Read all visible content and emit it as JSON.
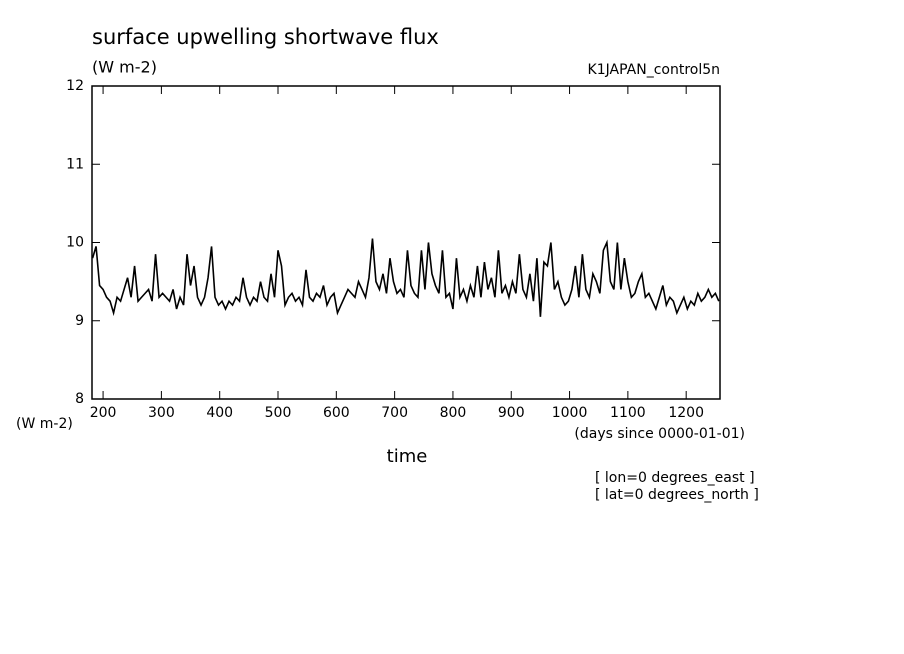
{
  "chart_data": {
    "type": "line",
    "title": "surface upwelling shortwave flux",
    "subtitle": "(W m-2)",
    "run_label": "K1JAPAN_control5n",
    "y_unit_label": "(W m-2)",
    "x_unit_label": "(days since 0000-01-01)",
    "x_label": "time",
    "annotations": [
      "[ lon=0 degrees_east ]",
      "[ lat=0 degrees_north ]"
    ],
    "color": "#000000",
    "xlim": [
      181,
      1258
    ],
    "ylim": [
      8,
      12
    ],
    "xticks": [
      200,
      300,
      400,
      500,
      600,
      700,
      800,
      900,
      1000,
      1100,
      1200
    ],
    "yticks": [
      8,
      9,
      10,
      11,
      12
    ],
    "x": [
      182,
      188,
      194,
      200,
      206,
      212,
      218,
      224,
      230,
      236,
      242,
      248,
      254,
      260,
      266,
      272,
      278,
      284,
      290,
      296,
      302,
      308,
      314,
      320,
      326,
      332,
      338,
      344,
      350,
      356,
      362,
      368,
      374,
      380,
      386,
      392,
      398,
      404,
      410,
      416,
      422,
      428,
      434,
      440,
      446,
      452,
      458,
      464,
      470,
      476,
      482,
      488,
      494,
      500,
      506,
      512,
      518,
      524,
      530,
      536,
      542,
      548,
      554,
      560,
      566,
      572,
      578,
      584,
      590,
      596,
      602,
      608,
      614,
      620,
      626,
      632,
      638,
      644,
      650,
      656,
      662,
      668,
      674,
      680,
      686,
      692,
      698,
      704,
      710,
      716,
      722,
      728,
      734,
      740,
      746,
      752,
      758,
      764,
      770,
      776,
      782,
      788,
      794,
      800,
      806,
      812,
      818,
      824,
      830,
      836,
      842,
      848,
      854,
      860,
      866,
      872,
      878,
      884,
      890,
      896,
      902,
      908,
      914,
      920,
      926,
      932,
      938,
      944,
      950,
      956,
      962,
      968,
      974,
      980,
      986,
      992,
      998,
      1004,
      1010,
      1016,
      1022,
      1028,
      1034,
      1040,
      1046,
      1052,
      1058,
      1064,
      1070,
      1076,
      1082,
      1088,
      1094,
      1100,
      1106,
      1112,
      1118,
      1124,
      1130,
      1136,
      1142,
      1148,
      1154,
      1160,
      1166,
      1172,
      1178,
      1184,
      1190,
      1196,
      1202,
      1208,
      1214,
      1220,
      1226,
      1232,
      1238,
      1244,
      1250,
      1256
    ],
    "values": [
      9.8,
      9.95,
      9.45,
      9.4,
      9.3,
      9.25,
      9.1,
      9.3,
      9.25,
      9.4,
      9.55,
      9.3,
      9.7,
      9.25,
      9.3,
      9.35,
      9.4,
      9.25,
      9.85,
      9.3,
      9.35,
      9.3,
      9.25,
      9.4,
      9.15,
      9.3,
      9.2,
      9.85,
      9.45,
      9.7,
      9.3,
      9.2,
      9.3,
      9.55,
      9.95,
      9.3,
      9.2,
      9.25,
      9.15,
      9.25,
      9.2,
      9.3,
      9.25,
      9.55,
      9.3,
      9.2,
      9.3,
      9.25,
      9.5,
      9.3,
      9.25,
      9.6,
      9.3,
      9.9,
      9.7,
      9.2,
      9.3,
      9.35,
      9.25,
      9.3,
      9.2,
      9.65,
      9.3,
      9.25,
      9.35,
      9.3,
      9.45,
      9.2,
      9.3,
      9.35,
      9.1,
      9.2,
      9.3,
      9.4,
      9.35,
      9.3,
      9.5,
      9.4,
      9.3,
      9.55,
      10.05,
      9.5,
      9.4,
      9.6,
      9.35,
      9.8,
      9.5,
      9.35,
      9.4,
      9.3,
      9.9,
      9.45,
      9.35,
      9.3,
      9.9,
      9.4,
      10.0,
      9.6,
      9.45,
      9.35,
      9.9,
      9.3,
      9.35,
      9.15,
      9.8,
      9.3,
      9.4,
      9.25,
      9.45,
      9.3,
      9.7,
      9.3,
      9.75,
      9.4,
      9.55,
      9.3,
      9.9,
      9.35,
      9.45,
      9.3,
      9.5,
      9.35,
      9.85,
      9.4,
      9.3,
      9.6,
      9.25,
      9.8,
      9.05,
      9.75,
      9.7,
      10.0,
      9.4,
      9.5,
      9.3,
      9.2,
      9.25,
      9.4,
      9.7,
      9.3,
      9.85,
      9.4,
      9.3,
      9.6,
      9.5,
      9.35,
      9.9,
      10.0,
      9.5,
      9.4,
      10.0,
      9.4,
      9.8,
      9.5,
      9.3,
      9.35,
      9.5,
      9.6,
      9.3,
      9.35,
      9.25,
      9.15,
      9.3,
      9.45,
      9.2,
      9.3,
      9.25,
      9.1,
      9.2,
      9.3,
      9.15,
      9.25,
      9.2,
      9.35,
      9.25,
      9.3,
      9.4,
      9.3,
      9.35,
      9.25
    ]
  }
}
